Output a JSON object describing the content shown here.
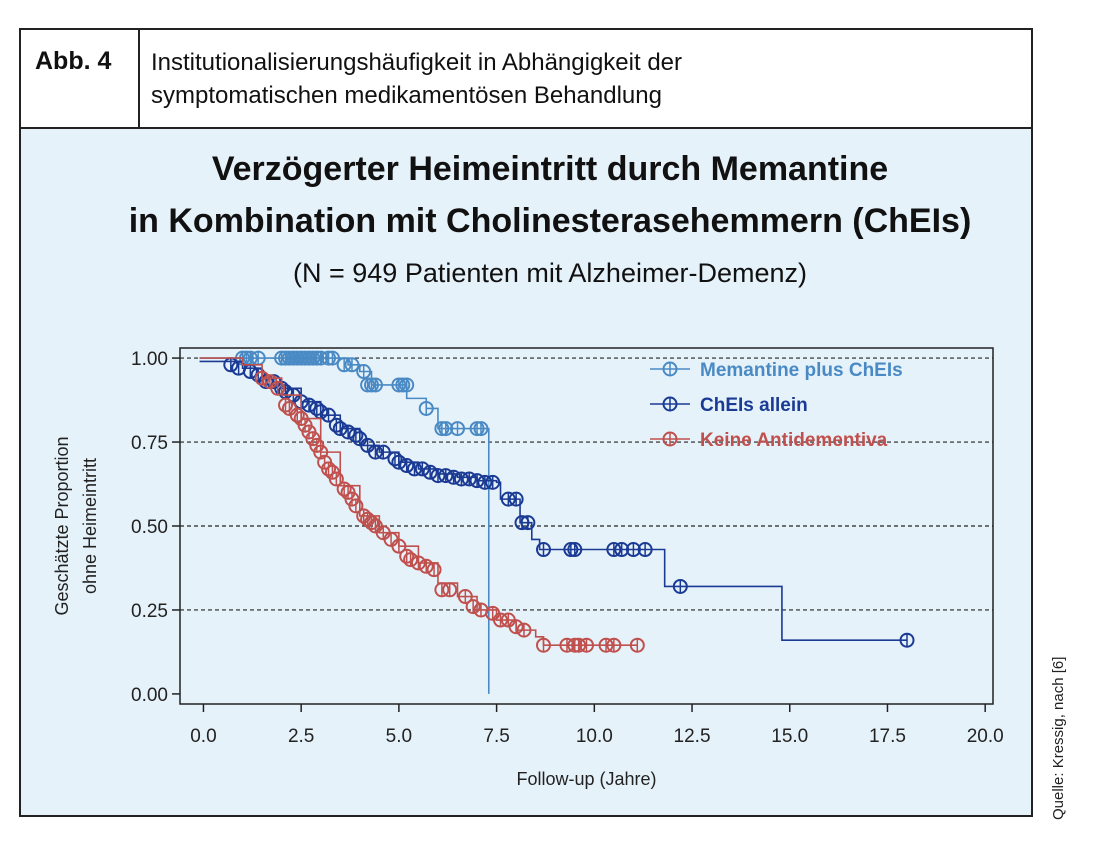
{
  "header": {
    "label": "Abb. 4",
    "caption_line1": "Institutionalisierungshäufigkeit in Abhängigkeit der",
    "caption_line2": "symptomatischen medikamentösen Behandlung"
  },
  "source": "Quelle: Kressig, nach [6]",
  "chart_data": {
    "type": "line",
    "subtype": "kaplan-meier",
    "title_line1": "Verzögerter Heimeintritt durch Memantine",
    "title_line2": "in Kombination mit Cholinesterasehemmern (ChEIs)",
    "subtitle": "(N = 949 Patienten mit Alzheimer-Demenz)",
    "xlabel": "Follow-up (Jahre)",
    "ylabel_line1": "Geschätzte Proportion",
    "ylabel_line2": "ohne Heimeintritt",
    "xlim": [
      -0.6,
      20.2
    ],
    "ylim": [
      -0.03,
      1.03
    ],
    "xticks": [
      "0.0",
      "2.5",
      "5.0",
      "7.5",
      "10.0",
      "12.5",
      "15.0",
      "17.5",
      "20.0"
    ],
    "yticks": [
      "0.00",
      "0.25",
      "0.50",
      "0.75",
      "1.00"
    ],
    "grid": "dashed horizontal at 0.25, 0.50, 0.75, 1.00",
    "legend_position": "top-right",
    "series": [
      {
        "name": "Memantine plus ChEIs",
        "color": "#4a8ac4",
        "steps": [
          [
            -0.1,
            1.0
          ],
          [
            1.8,
            1.0
          ],
          [
            3.7,
            0.98
          ],
          [
            4.0,
            0.96
          ],
          [
            4.3,
            0.92
          ],
          [
            4.8,
            0.92
          ],
          [
            5.2,
            0.88
          ],
          [
            5.7,
            0.85
          ],
          [
            6.0,
            0.79
          ],
          [
            7.3,
            0.79
          ],
          [
            7.3,
            0.0
          ]
        ],
        "censored": [
          [
            1.0,
            1.0
          ],
          [
            1.1,
            1.0
          ],
          [
            1.2,
            1.0
          ],
          [
            1.4,
            1.0
          ],
          [
            2.0,
            1.0
          ],
          [
            2.1,
            1.0
          ],
          [
            2.2,
            1.0
          ],
          [
            2.3,
            1.0
          ],
          [
            2.4,
            1.0
          ],
          [
            2.5,
            1.0
          ],
          [
            2.6,
            1.0
          ],
          [
            2.7,
            1.0
          ],
          [
            2.8,
            1.0
          ],
          [
            2.9,
            1.0
          ],
          [
            3.0,
            1.0
          ],
          [
            3.2,
            1.0
          ],
          [
            3.3,
            1.0
          ],
          [
            3.6,
            0.98
          ],
          [
            3.8,
            0.98
          ],
          [
            4.1,
            0.96
          ],
          [
            4.2,
            0.92
          ],
          [
            4.3,
            0.92
          ],
          [
            4.4,
            0.92
          ],
          [
            5.0,
            0.92
          ],
          [
            5.1,
            0.92
          ],
          [
            5.2,
            0.92
          ],
          [
            5.7,
            0.85
          ],
          [
            6.1,
            0.79
          ],
          [
            6.2,
            0.79
          ],
          [
            6.5,
            0.79
          ],
          [
            7.0,
            0.79
          ],
          [
            7.1,
            0.79
          ]
        ]
      },
      {
        "name": "ChEIs allein",
        "color": "#1a3a94",
        "steps": [
          [
            -0.1,
            0.99
          ],
          [
            0.7,
            0.99
          ],
          [
            1.0,
            0.97
          ],
          [
            1.5,
            0.94
          ],
          [
            2.0,
            0.91
          ],
          [
            2.5,
            0.87
          ],
          [
            3.0,
            0.83
          ],
          [
            3.5,
            0.79
          ],
          [
            4.0,
            0.74
          ],
          [
            4.5,
            0.72
          ],
          [
            5.0,
            0.69
          ],
          [
            5.5,
            0.67
          ],
          [
            6.0,
            0.655
          ],
          [
            6.5,
            0.645
          ],
          [
            7.0,
            0.635
          ],
          [
            7.5,
            0.63
          ],
          [
            7.6,
            0.58
          ],
          [
            8.0,
            0.58
          ],
          [
            8.1,
            0.51
          ],
          [
            8.3,
            0.51
          ],
          [
            8.4,
            0.46
          ],
          [
            8.6,
            0.43
          ],
          [
            11.8,
            0.43
          ],
          [
            11.8,
            0.32
          ],
          [
            14.8,
            0.32
          ],
          [
            14.8,
            0.16
          ],
          [
            18.0,
            0.16
          ]
        ],
        "censored": [
          [
            0.7,
            0.98
          ],
          [
            0.9,
            0.97
          ],
          [
            1.2,
            0.96
          ],
          [
            1.4,
            0.95
          ],
          [
            1.6,
            0.93
          ],
          [
            1.8,
            0.93
          ],
          [
            2.0,
            0.91
          ],
          [
            2.1,
            0.9
          ],
          [
            2.3,
            0.89
          ],
          [
            2.5,
            0.87
          ],
          [
            2.7,
            0.86
          ],
          [
            2.9,
            0.85
          ],
          [
            3.0,
            0.84
          ],
          [
            3.2,
            0.83
          ],
          [
            3.4,
            0.8
          ],
          [
            3.5,
            0.79
          ],
          [
            3.7,
            0.78
          ],
          [
            3.9,
            0.77
          ],
          [
            4.0,
            0.76
          ],
          [
            4.2,
            0.74
          ],
          [
            4.4,
            0.72
          ],
          [
            4.6,
            0.72
          ],
          [
            4.9,
            0.7
          ],
          [
            5.0,
            0.69
          ],
          [
            5.2,
            0.68
          ],
          [
            5.4,
            0.67
          ],
          [
            5.6,
            0.67
          ],
          [
            5.8,
            0.66
          ],
          [
            6.0,
            0.65
          ],
          [
            6.2,
            0.65
          ],
          [
            6.4,
            0.645
          ],
          [
            6.6,
            0.64
          ],
          [
            6.8,
            0.64
          ],
          [
            7.0,
            0.635
          ],
          [
            7.2,
            0.63
          ],
          [
            7.4,
            0.63
          ],
          [
            7.8,
            0.58
          ],
          [
            8.0,
            0.58
          ],
          [
            8.15,
            0.51
          ],
          [
            8.3,
            0.51
          ],
          [
            8.7,
            0.43
          ],
          [
            9.4,
            0.43
          ],
          [
            9.5,
            0.43
          ],
          [
            10.5,
            0.43
          ],
          [
            10.7,
            0.43
          ],
          [
            11.0,
            0.43
          ],
          [
            11.3,
            0.43
          ],
          [
            12.2,
            0.32
          ],
          [
            18.0,
            0.16
          ]
        ]
      },
      {
        "name": "Keine Antidementiva",
        "color": "#c0504d",
        "steps": [
          [
            -0.1,
            1.0
          ],
          [
            0.5,
            1.0
          ],
          [
            1.0,
            0.98
          ],
          [
            1.5,
            0.94
          ],
          [
            2.0,
            0.89
          ],
          [
            2.5,
            0.82
          ],
          [
            3.0,
            0.72
          ],
          [
            3.5,
            0.62
          ],
          [
            4.0,
            0.53
          ],
          [
            4.5,
            0.48
          ],
          [
            5.0,
            0.44
          ],
          [
            5.5,
            0.39
          ],
          [
            6.0,
            0.33
          ],
          [
            6.5,
            0.29
          ],
          [
            7.0,
            0.25
          ],
          [
            7.5,
            0.22
          ],
          [
            8.0,
            0.19
          ],
          [
            8.5,
            0.17
          ],
          [
            8.7,
            0.145
          ],
          [
            11.1,
            0.145
          ]
        ],
        "censored": [
          [
            1.5,
            0.94
          ],
          [
            1.7,
            0.93
          ],
          [
            1.9,
            0.91
          ],
          [
            2.1,
            0.86
          ],
          [
            2.2,
            0.85
          ],
          [
            2.4,
            0.83
          ],
          [
            2.5,
            0.82
          ],
          [
            2.6,
            0.8
          ],
          [
            2.7,
            0.78
          ],
          [
            2.8,
            0.76
          ],
          [
            2.9,
            0.74
          ],
          [
            3.0,
            0.72
          ],
          [
            3.1,
            0.69
          ],
          [
            3.2,
            0.67
          ],
          [
            3.3,
            0.66
          ],
          [
            3.4,
            0.64
          ],
          [
            3.6,
            0.61
          ],
          [
            3.7,
            0.6
          ],
          [
            3.8,
            0.58
          ],
          [
            3.9,
            0.56
          ],
          [
            4.1,
            0.53
          ],
          [
            4.2,
            0.52
          ],
          [
            4.3,
            0.51
          ],
          [
            4.4,
            0.5
          ],
          [
            4.6,
            0.48
          ],
          [
            4.8,
            0.46
          ],
          [
            5.0,
            0.44
          ],
          [
            5.2,
            0.41
          ],
          [
            5.3,
            0.4
          ],
          [
            5.5,
            0.39
          ],
          [
            5.7,
            0.38
          ],
          [
            5.9,
            0.37
          ],
          [
            6.1,
            0.31
          ],
          [
            6.3,
            0.31
          ],
          [
            6.7,
            0.29
          ],
          [
            6.9,
            0.26
          ],
          [
            7.1,
            0.25
          ],
          [
            7.4,
            0.24
          ],
          [
            7.6,
            0.22
          ],
          [
            7.8,
            0.22
          ],
          [
            8.0,
            0.2
          ],
          [
            8.2,
            0.19
          ],
          [
            8.7,
            0.145
          ],
          [
            9.3,
            0.145
          ],
          [
            9.5,
            0.145
          ],
          [
            9.6,
            0.145
          ],
          [
            9.8,
            0.145
          ],
          [
            10.3,
            0.145
          ],
          [
            10.5,
            0.145
          ],
          [
            11.1,
            0.145
          ]
        ]
      }
    ]
  }
}
